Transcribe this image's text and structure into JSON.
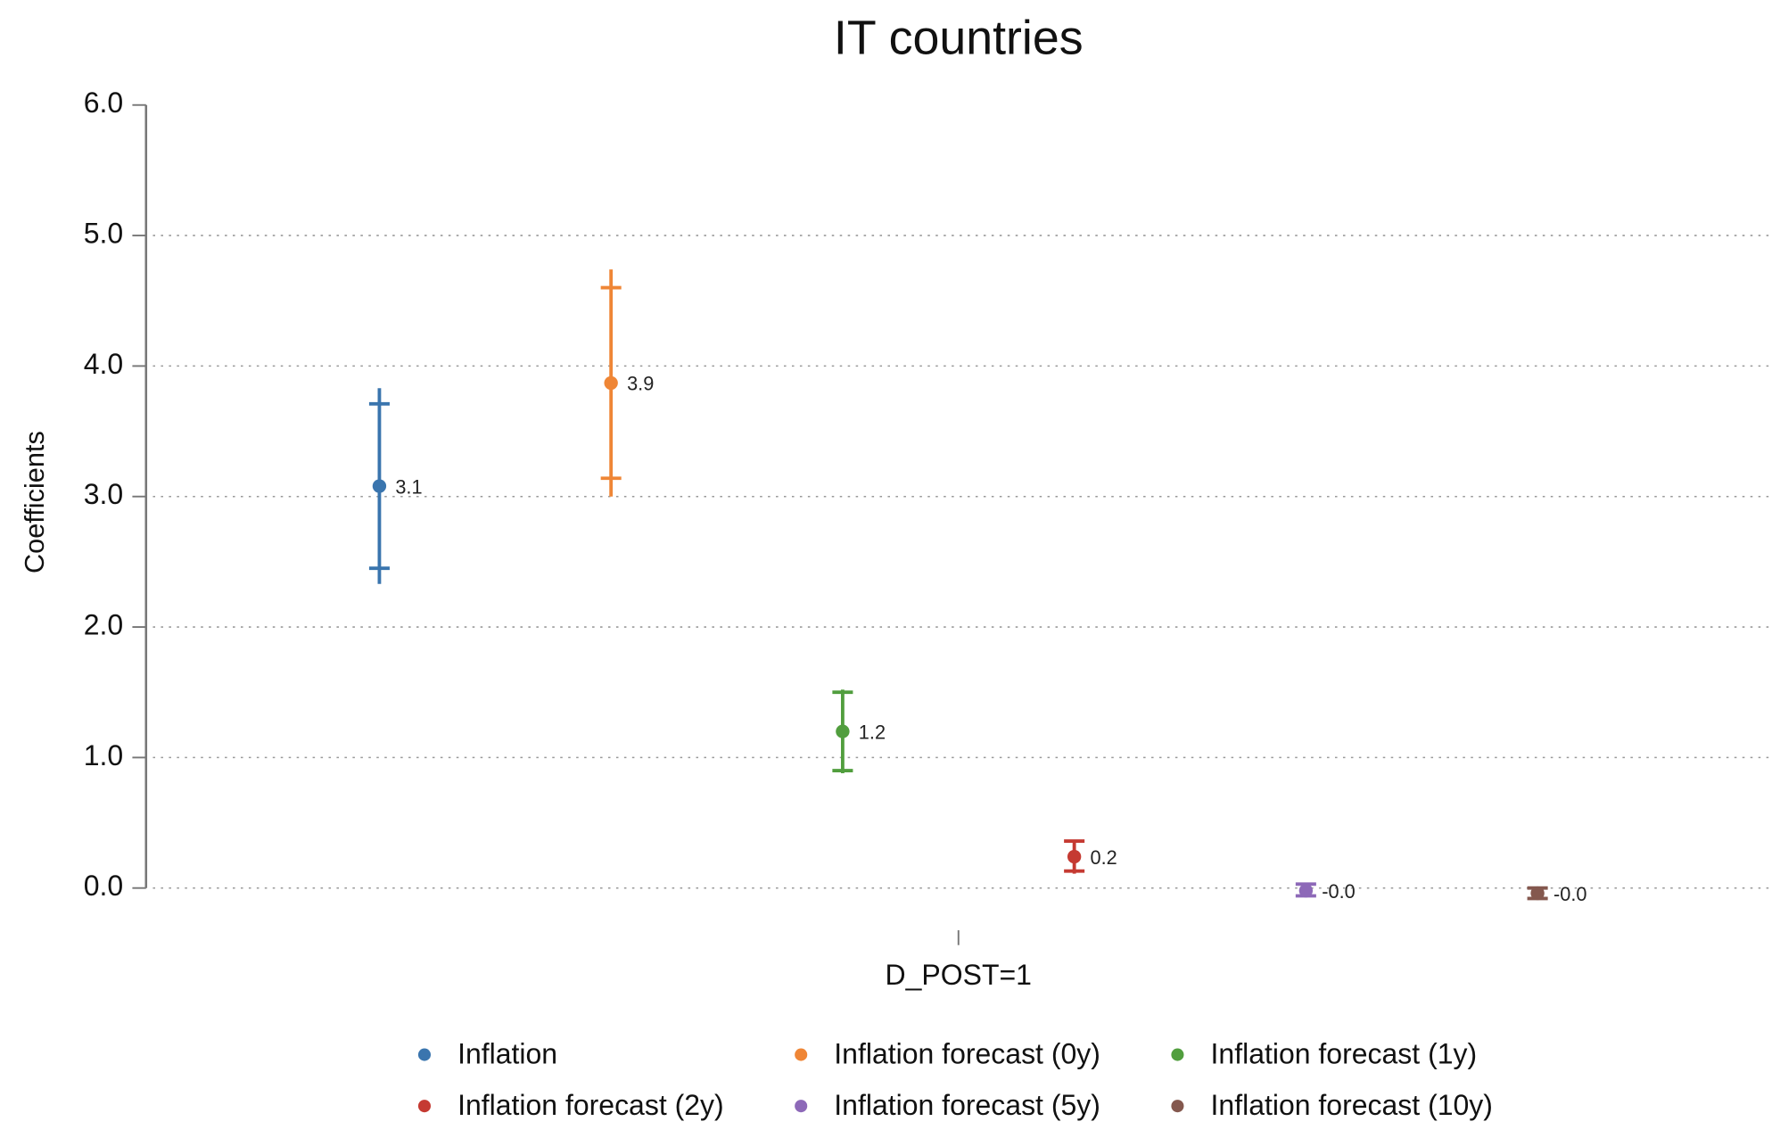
{
  "chart_data": {
    "type": "coefplot",
    "title": "IT countries",
    "y_label": "Coefficients",
    "categories": [
      "D_POST=1"
    ],
    "ylim": [
      0,
      6
    ],
    "yticks": [
      {
        "value": 0,
        "label": "0.0"
      },
      {
        "value": 1,
        "label": "1.0"
      },
      {
        "value": 2,
        "label": "2.0"
      },
      {
        "value": 3,
        "label": "3.0"
      },
      {
        "value": 4,
        "label": "4.0"
      },
      {
        "value": 5,
        "label": "5.0"
      },
      {
        "value": 6,
        "label": "6.0"
      }
    ],
    "grid": true,
    "series": [
      {
        "name": "Inflation",
        "color": "#3a75ae",
        "values": [
          3.08
        ],
        "value_labels": [
          "3.1"
        ],
        "ci_inner": [
          2.45,
          3.71
        ],
        "ci_outer": [
          2.33,
          3.83
        ]
      },
      {
        "name": "Inflation forecast (0y)",
        "color": "#ef8636",
        "values": [
          3.87
        ],
        "value_labels": [
          "3.9"
        ],
        "ci_inner": [
          3.14,
          4.6
        ],
        "ci_outer": [
          3.0,
          4.74
        ]
      },
      {
        "name": "Inflation forecast (1y)",
        "color": "#519e3e",
        "values": [
          1.2
        ],
        "value_labels": [
          "1.2"
        ],
        "ci_inner": [
          0.9,
          1.5
        ],
        "ci_outer": [
          0.88,
          1.52
        ]
      },
      {
        "name": "Inflation forecast (2y)",
        "color": "#c53a32",
        "values": [
          0.24
        ],
        "value_labels": [
          "0.2"
        ],
        "ci_inner": [
          0.13,
          0.36
        ],
        "ci_outer": [
          0.11,
          0.37
        ]
      },
      {
        "name": "Inflation forecast (5y)",
        "color": "#8d69b8",
        "values": [
          -0.02
        ],
        "value_labels": [
          "-0.0"
        ],
        "ci_inner": [
          -0.06,
          0.03
        ],
        "ci_outer": [
          -0.07,
          0.04
        ]
      },
      {
        "name": "Inflation forecast (10y)",
        "color": "#84584e",
        "values": [
          -0.04
        ],
        "value_labels": [
          "-0.0"
        ],
        "ci_inner": [
          -0.08,
          0.0
        ],
        "ci_outer": [
          -0.09,
          0.01
        ]
      }
    ]
  }
}
